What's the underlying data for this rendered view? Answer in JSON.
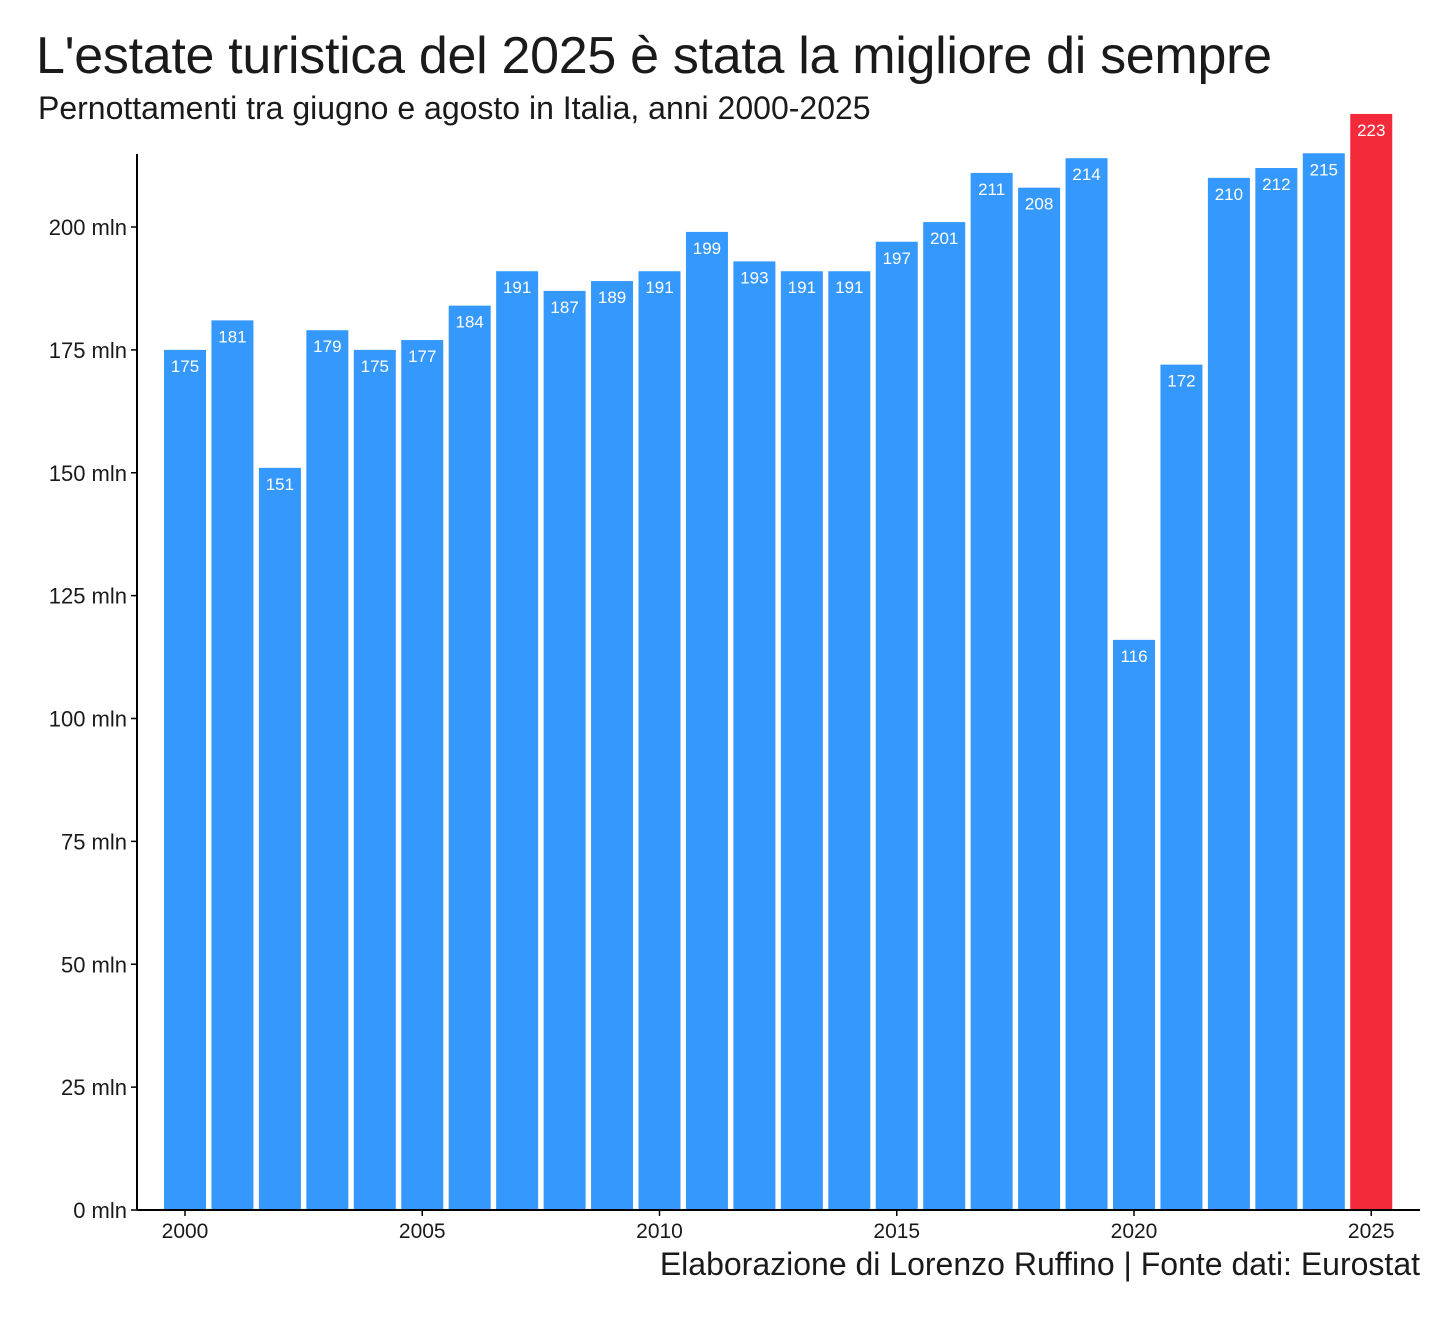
{
  "chart_data": {
    "type": "bar",
    "title": "L'estate turistica del 2025 è stata la migliore di sempre",
    "subtitle": "Pernottamenti tra giugno e agosto in Italia, anni 2000-2025",
    "caption": "Elaborazione di Lorenzo Ruffino | Fonte dati: Eurostat",
    "xlabel": "",
    "ylabel": "",
    "categories": [
      2000,
      2001,
      2002,
      2003,
      2004,
      2005,
      2006,
      2007,
      2008,
      2009,
      2010,
      2011,
      2012,
      2013,
      2014,
      2015,
      2016,
      2017,
      2018,
      2019,
      2020,
      2021,
      2022,
      2023,
      2024,
      2025
    ],
    "values": [
      175,
      181,
      151,
      179,
      175,
      177,
      184,
      191,
      187,
      189,
      191,
      199,
      193,
      191,
      191,
      197,
      201,
      211,
      208,
      214,
      116,
      172,
      210,
      212,
      215,
      223
    ],
    "value_labels": [
      "175",
      "181",
      "151",
      "179",
      "175",
      "177",
      "184",
      "191",
      "187",
      "189",
      "191",
      "199",
      "193",
      "191",
      "191",
      "197",
      "201",
      "211",
      "208",
      "214",
      "116",
      "172",
      "210",
      "212",
      "215",
      "223"
    ],
    "ylim": [
      0,
      215
    ],
    "yticks": [
      0,
      25,
      50,
      75,
      100,
      125,
      150,
      175,
      200
    ],
    "ytick_labels": [
      "0 mln",
      "25 mln",
      "50 mln",
      "75 mln",
      "100 mln",
      "125 mln",
      "150 mln",
      "175 mln",
      "200 mln"
    ],
    "xticks": [
      2000,
      2005,
      2010,
      2015,
      2020,
      2025
    ],
    "xtick_labels": [
      "2000",
      "2005",
      "2010",
      "2015",
      "2020",
      "2025"
    ],
    "highlight_category": 2025,
    "colors": {
      "bar": "#3598fc",
      "highlight": "#f22a3a",
      "axis": "#000000",
      "label": "#ffffff"
    },
    "grid": false
  }
}
